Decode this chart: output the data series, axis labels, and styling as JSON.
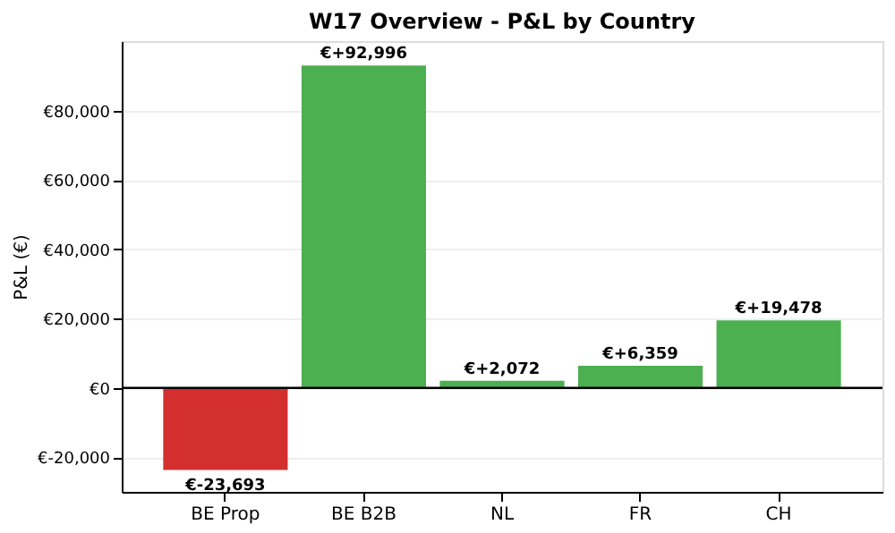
{
  "chart_data": {
    "type": "bar",
    "title": "W17 Overview - P&L by Country",
    "ylabel": "P&L (€)",
    "categories": [
      "BE Prop",
      "BE B2B",
      "NL",
      "FR",
      "CH"
    ],
    "values": [
      -23693,
      92996,
      2072,
      6359,
      19478
    ],
    "colors": [
      "#d32f2f",
      "#4caf50",
      "#4caf50",
      "#4caf50",
      "#4caf50"
    ],
    "value_labels": [
      "€-23,693",
      "€+92,996",
      "€+2,072",
      "€+6,359",
      "€+19,478"
    ],
    "ylim": [
      -30000,
      100000
    ],
    "yticks": [
      {
        "value": -20000,
        "label": "€-20,000"
      },
      {
        "value": 0,
        "label": "€0"
      },
      {
        "value": 20000,
        "label": "€20,000"
      },
      {
        "value": 40000,
        "label": "€40,000"
      },
      {
        "value": 60000,
        "label": "€60,000"
      },
      {
        "value": 80000,
        "label": "€80,000"
      }
    ],
    "ref_lines": [
      {
        "axis": "y",
        "value": 0,
        "color": "#000000"
      }
    ],
    "grid": "y"
  }
}
